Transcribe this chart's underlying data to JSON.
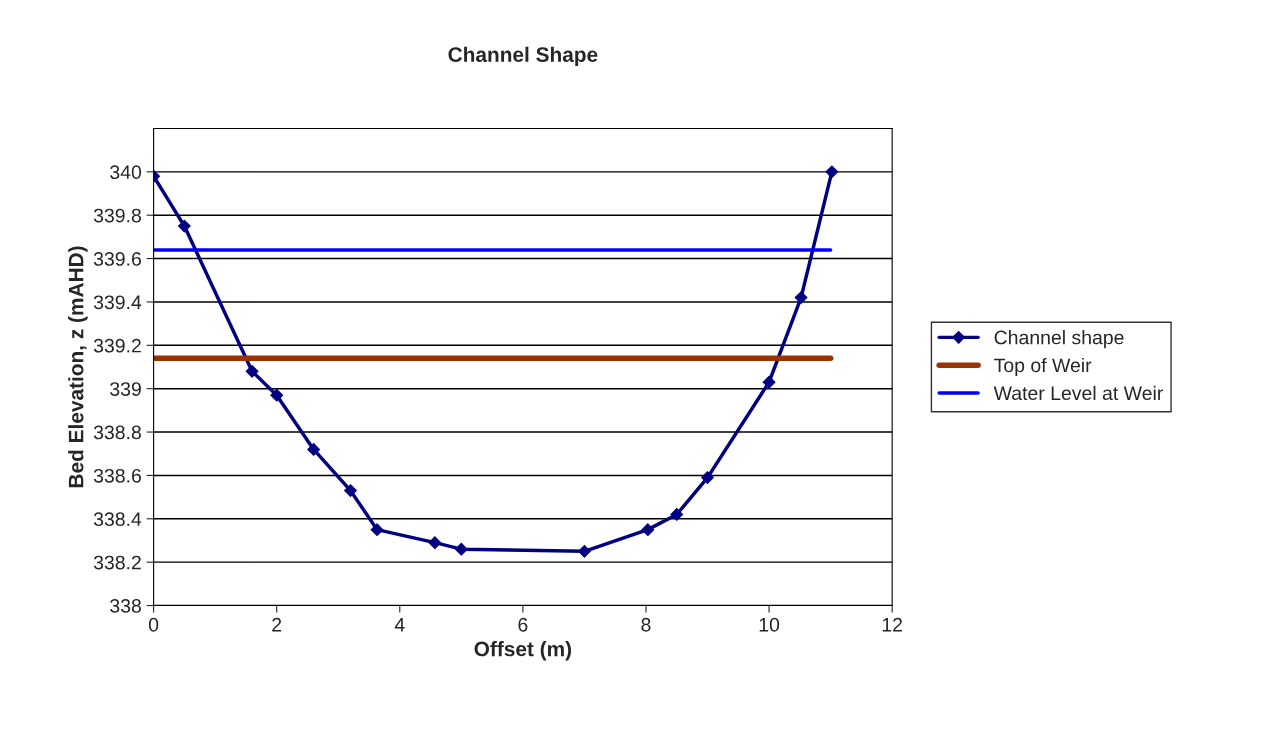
{
  "chart_data": {
    "type": "line",
    "title": "Channel Shape",
    "xlabel": "Offset (m)",
    "ylabel": "Bed Elevation, z (mAHD)",
    "xlim": [
      0,
      12
    ],
    "xticks": [
      0,
      2,
      4,
      6,
      8,
      10,
      12
    ],
    "ylim": [
      338,
      340.2
    ],
    "yticks": [
      338,
      338.2,
      338.4,
      338.6,
      338.8,
      339,
      339.2,
      339.4,
      339.6,
      339.8,
      340
    ],
    "grid": "y",
    "legend": "right",
    "series": [
      {
        "name": "Channel shape",
        "color": "#000080",
        "marker": "diamond",
        "x": [
          0,
          0.5,
          1.6,
          2.0,
          2.6,
          3.2,
          3.63,
          4.57,
          5.0,
          7.0,
          8.03,
          8.5,
          9.0,
          10.0,
          10.52,
          11.02
        ],
        "values": [
          339.98,
          339.75,
          339.08,
          338.97,
          338.72,
          338.53,
          338.35,
          338.29,
          338.26,
          338.25,
          338.35,
          338.42,
          338.59,
          339.03,
          339.42,
          340.0
        ]
      },
      {
        "name": "Top of Weir",
        "color": "#993300",
        "marker": "none",
        "x": [
          0,
          11
        ],
        "values": [
          339.14,
          339.14
        ]
      },
      {
        "name": "Water Level at Weir",
        "color": "#0000ff",
        "marker": "none",
        "x": [
          0,
          11
        ],
        "values": [
          339.64,
          339.64
        ]
      }
    ]
  }
}
